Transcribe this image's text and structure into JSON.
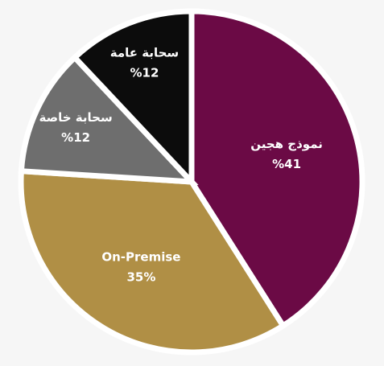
{
  "chart_data": {
    "type": "pie",
    "categories": [
      "نموذج هجين",
      "On-Premise",
      "سحابة خاصة",
      "سحابة عامة"
    ],
    "values": [
      41,
      35,
      12,
      12
    ],
    "value_labels": [
      "%41",
      "35%",
      "%12",
      "%12"
    ],
    "colors": [
      "#6b0a45",
      "#b08f45",
      "#6e6e6e",
      "#0c0c0c"
    ]
  }
}
